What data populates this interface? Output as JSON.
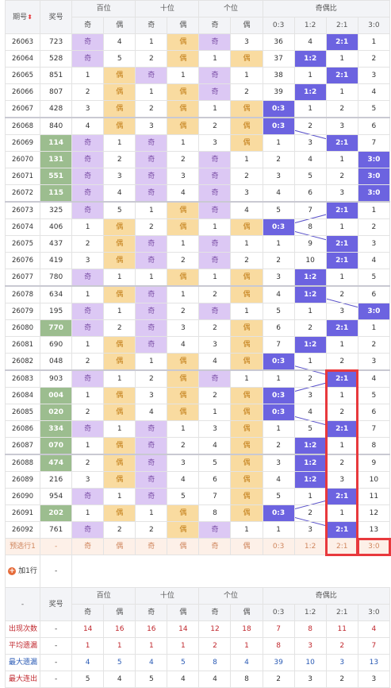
{
  "header": {
    "period": "期号",
    "sort_icon": "sort-arrows-icon",
    "prize": "奖号",
    "hundreds": "百位",
    "tens": "十位",
    "units": "个位",
    "ratio": "奇偶比",
    "odd": "奇",
    "even": "偶",
    "ratios": [
      "0:3",
      "1:2",
      "2:1",
      "3:0"
    ]
  },
  "rows": [
    {
      "p": "26063",
      "n": "723",
      "h": "q",
      "t": "o",
      "u": "q",
      "r": [
        "36",
        "4",
        "2:1",
        "1"
      ]
    },
    {
      "p": "26064",
      "n": "528",
      "h": "q",
      "t": "o",
      "u": "o",
      "r": [
        "37",
        "1:2",
        "1",
        "2"
      ]
    },
    {
      "p": "26065",
      "n": "851",
      "h": "o",
      "t": "q",
      "u": "q",
      "r": [
        "38",
        "1",
        "2:1",
        "3"
      ]
    },
    {
      "p": "26066",
      "n": "807",
      "h": "o",
      "t": "o",
      "u": "q",
      "r": [
        "39",
        "1:2",
        "1",
        "4"
      ]
    },
    {
      "p": "26067",
      "n": "428",
      "h": "o",
      "t": "o",
      "u": "o",
      "r": [
        "0:3",
        "1",
        "2",
        "5"
      ]
    },
    {
      "p": "26068",
      "n": "840",
      "h": "o",
      "t": "o",
      "u": "o",
      "r": [
        "0:3",
        "2",
        "3",
        "6"
      ]
    },
    {
      "p": "26069",
      "n": "114",
      "h": "q",
      "t": "q",
      "u": "o",
      "r": [
        "1",
        "3",
        "2:1",
        "7"
      ]
    },
    {
      "p": "26070",
      "n": "131",
      "h": "q",
      "t": "q",
      "u": "q",
      "r": [
        "2",
        "4",
        "1",
        "3:0"
      ]
    },
    {
      "p": "26071",
      "n": "551",
      "h": "q",
      "t": "q",
      "u": "q",
      "r": [
        "3",
        "5",
        "2",
        "3:0"
      ]
    },
    {
      "p": "26072",
      "n": "115",
      "h": "q",
      "t": "q",
      "u": "q",
      "r": [
        "4",
        "6",
        "3",
        "3:0"
      ]
    },
    {
      "p": "26073",
      "n": "325",
      "h": "q",
      "t": "o",
      "u": "q",
      "r": [
        "5",
        "7",
        "2:1",
        "1"
      ]
    },
    {
      "p": "26074",
      "n": "406",
      "h": "o",
      "t": "o",
      "u": "o",
      "r": [
        "0:3",
        "8",
        "1",
        "2"
      ]
    },
    {
      "p": "26075",
      "n": "437",
      "h": "o",
      "t": "q",
      "u": "q",
      "r": [
        "1",
        "9",
        "2:1",
        "3"
      ]
    },
    {
      "p": "26076",
      "n": "419",
      "h": "o",
      "t": "q",
      "u": "q",
      "r": [
        "2",
        "10",
        "2:1",
        "4"
      ]
    },
    {
      "p": "26077",
      "n": "780",
      "h": "q",
      "t": "o",
      "u": "o",
      "r": [
        "3",
        "1:2",
        "1",
        "5"
      ]
    },
    {
      "p": "26078",
      "n": "634",
      "h": "o",
      "t": "q",
      "u": "o",
      "r": [
        "4",
        "1:2",
        "2",
        "6"
      ]
    },
    {
      "p": "26079",
      "n": "195",
      "h": "q",
      "t": "q",
      "u": "q",
      "r": [
        "5",
        "1",
        "3",
        "3:0"
      ]
    },
    {
      "p": "26080",
      "n": "770",
      "h": "q",
      "t": "q",
      "u": "o",
      "r": [
        "6",
        "2",
        "2:1",
        "1"
      ]
    },
    {
      "p": "26081",
      "n": "690",
      "h": "o",
      "t": "q",
      "u": "o",
      "r": [
        "7",
        "1:2",
        "1",
        "2"
      ]
    },
    {
      "p": "26082",
      "n": "048",
      "h": "o",
      "t": "o",
      "u": "o",
      "r": [
        "0:3",
        "1",
        "2",
        "3"
      ]
    },
    {
      "p": "26083",
      "n": "903",
      "h": "q",
      "t": "o",
      "u": "q",
      "r": [
        "1",
        "2",
        "2:1",
        "4"
      ]
    },
    {
      "p": "26084",
      "n": "004",
      "h": "o",
      "t": "o",
      "u": "o",
      "r": [
        "0:3",
        "3",
        "1",
        "5"
      ]
    },
    {
      "p": "26085",
      "n": "020",
      "h": "o",
      "t": "o",
      "u": "o",
      "r": [
        "0:3",
        "4",
        "2",
        "6"
      ]
    },
    {
      "p": "26086",
      "n": "334",
      "h": "q",
      "t": "q",
      "u": "o",
      "r": [
        "1",
        "5",
        "2:1",
        "7"
      ]
    },
    {
      "p": "26087",
      "n": "070",
      "h": "o",
      "t": "q",
      "u": "o",
      "r": [
        "2",
        "1:2",
        "1",
        "8"
      ]
    },
    {
      "p": "26088",
      "n": "474",
      "h": "o",
      "t": "q",
      "u": "o",
      "r": [
        "3",
        "1:2",
        "2",
        "9"
      ]
    },
    {
      "p": "26089",
      "n": "216",
      "h": "o",
      "t": "q",
      "u": "o",
      "r": [
        "4",
        "1:2",
        "3",
        "10"
      ]
    },
    {
      "p": "26090",
      "n": "954",
      "h": "q",
      "t": "q",
      "u": "o",
      "r": [
        "5",
        "1",
        "2:1",
        "11"
      ]
    },
    {
      "p": "26091",
      "n": "202",
      "h": "o",
      "t": "o",
      "u": "o",
      "r": [
        "0:3",
        "2",
        "1",
        "12"
      ]
    },
    {
      "p": "26092",
      "n": "761",
      "h": "q",
      "t": "o",
      "u": "q",
      "r": [
        "1",
        "3",
        "2:1",
        "13"
      ]
    }
  ],
  "hundreds_misses": [
    "4",
    "5",
    "1",
    "2",
    "3",
    "4",
    "1",
    "2",
    "3",
    "4",
    "5",
    "1",
    "2",
    "3",
    "1",
    "1",
    "1",
    "2",
    "1",
    "2",
    "1",
    "1",
    "2",
    "1",
    "1",
    "2",
    "3",
    "1",
    "1",
    "2"
  ],
  "tens_misses": [
    "1",
    "2",
    "1",
    "1",
    "2",
    "3",
    "1",
    "2",
    "3",
    "4",
    "1",
    "2",
    "1",
    "2",
    "1",
    "1",
    "2",
    "3",
    "4",
    "1",
    "2",
    "3",
    "4",
    "1",
    "2",
    "3",
    "4",
    "5",
    "1",
    "2"
  ],
  "units_misses": [
    "3",
    "1",
    "1",
    "2",
    "1",
    "2",
    "3",
    "1",
    "2",
    "3",
    "4",
    "1",
    "1",
    "2",
    "1",
    "2",
    "1",
    "2",
    "3",
    "4",
    "1",
    "2",
    "1",
    "3",
    "4",
    "5",
    "6",
    "7",
    "8",
    "1"
  ],
  "green_prizes": [
    "26069",
    "26070",
    "26071",
    "26072",
    "26080",
    "26084",
    "26085",
    "26086",
    "26087",
    "26088",
    "26091"
  ],
  "blue_ratio_positions": [
    2,
    1,
    2,
    1,
    0,
    0,
    2,
    3,
    3,
    3,
    2,
    0,
    2,
    2,
    1,
    1,
    3,
    2,
    1,
    0,
    2,
    0,
    0,
    2,
    1,
    1,
    1,
    2,
    0,
    2
  ],
  "preselect": {
    "label": "预选行1",
    "dash": "-",
    "cells": [
      "奇",
      "偶",
      "奇",
      "偶",
      "奇",
      "偶",
      "0:3",
      "1:2",
      "2:1",
      "3:0"
    ]
  },
  "add_row": {
    "label": "加1行",
    "icon": "plus-circle-icon",
    "dash": "-"
  },
  "footer": {
    "dash": "-",
    "prize": "奖号",
    "stats": [
      {
        "label": "出现次数",
        "vals": [
          "14",
          "16",
          "16",
          "14",
          "12",
          "18",
          "7",
          "8",
          "11",
          "4"
        ],
        "style": "red"
      },
      {
        "label": "平均遗漏",
        "vals": [
          "1",
          "1",
          "1",
          "1",
          "2",
          "1",
          "8",
          "3",
          "2",
          "7"
        ],
        "style": "red"
      },
      {
        "label": "最大遗漏",
        "vals": [
          "4",
          "5",
          "4",
          "5",
          "8",
          "4",
          "39",
          "10",
          "3",
          "13"
        ],
        "style": "blue"
      },
      {
        "label": "最大连出",
        "vals": [
          "5",
          "4",
          "5",
          "4",
          "4",
          "8",
          "2",
          "3",
          "2",
          "3"
        ],
        "style": "black"
      }
    ]
  },
  "colors": {
    "odd": "#dcc8f4",
    "even": "#f9dba0",
    "hit": "#6c63e0",
    "prize_green": "#9cbd8f",
    "highlight_box": "#e8393d"
  }
}
